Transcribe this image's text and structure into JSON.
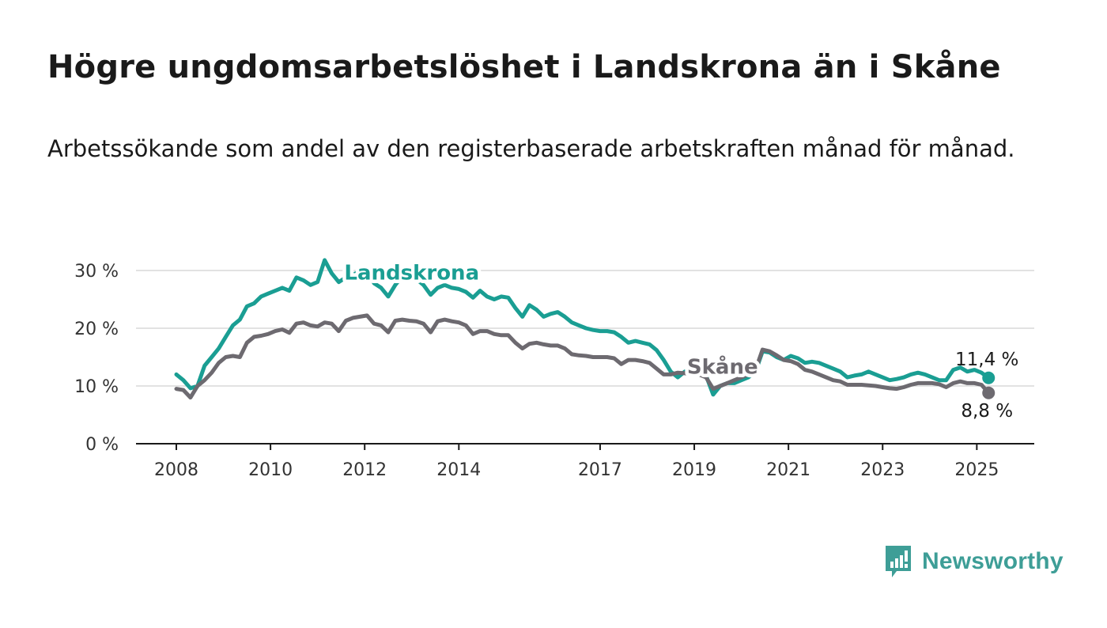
{
  "title": "Högre ungdomsarbetslöshet i Landskrona än i Skåne",
  "subtitle": "Arbetssökande som andel av den registerbaserade arbetskraften månad för månad.",
  "brand": {
    "name": "Newsworthy",
    "color": "#3e9e97"
  },
  "chart_data": {
    "type": "line",
    "ylim": [
      0,
      30
    ],
    "xlim": [
      2008,
      2025.45
    ],
    "y_ticks": [
      0,
      10,
      20,
      30
    ],
    "y_tick_labels": [
      "0 %",
      "10 %",
      "20 %",
      "30 %"
    ],
    "x_ticks": [
      2008,
      2010,
      2012,
      2014,
      2017,
      2019,
      2021,
      2023,
      2025
    ],
    "x_tick_labels": [
      "2008",
      "2010",
      "2012",
      "2014",
      "2017",
      "2019",
      "2021",
      "2023",
      "2025"
    ],
    "grid": true,
    "series": [
      {
        "name": "Landskrona",
        "color": "#1a9e93",
        "end_label": "11,4 %",
        "end_value": 11.4,
        "x": [
          2008.0,
          2008.15,
          2008.3,
          2008.45,
          2008.6,
          2008.75,
          2008.9,
          2009.05,
          2009.2,
          2009.35,
          2009.5,
          2009.65,
          2009.8,
          2009.95,
          2010.1,
          2010.25,
          2010.4,
          2010.55,
          2010.7,
          2010.85,
          2011.0,
          2011.15,
          2011.3,
          2011.45,
          2011.6,
          2011.75,
          2011.9,
          2012.05,
          2012.2,
          2012.35,
          2012.5,
          2012.65,
          2012.8,
          2012.95,
          2013.1,
          2013.25,
          2013.4,
          2013.55,
          2013.7,
          2013.85,
          2014.0,
          2014.15,
          2014.3,
          2014.45,
          2014.6,
          2014.75,
          2014.9,
          2015.05,
          2015.2,
          2015.35,
          2015.5,
          2015.65,
          2015.8,
          2015.95,
          2016.1,
          2016.25,
          2016.4,
          2016.55,
          2016.7,
          2016.85,
          2017.0,
          2017.15,
          2017.3,
          2017.45,
          2017.6,
          2017.75,
          2017.9,
          2018.05,
          2018.2,
          2018.35,
          2018.5,
          2018.65,
          2018.8,
          2018.95,
          2019.1,
          2019.25,
          2019.4,
          2019.55,
          2019.7,
          2019.85,
          2020.0,
          2020.15,
          2020.3,
          2020.45,
          2020.6,
          2020.75,
          2020.9,
          2021.05,
          2021.2,
          2021.35,
          2021.5,
          2021.65,
          2021.8,
          2021.95,
          2022.1,
          2022.25,
          2022.4,
          2022.55,
          2022.7,
          2022.85,
          2023.0,
          2023.15,
          2023.3,
          2023.45,
          2023.6,
          2023.75,
          2023.9,
          2024.05,
          2024.2,
          2024.35,
          2024.5,
          2024.65,
          2024.8,
          2024.95,
          2025.1,
          2025.25
        ],
        "y": [
          12.0,
          11.0,
          9.6,
          10.0,
          13.5,
          15.0,
          16.5,
          18.5,
          20.5,
          21.5,
          23.8,
          24.3,
          25.5,
          26.0,
          26.5,
          27.0,
          26.5,
          28.8,
          28.3,
          27.5,
          28.0,
          31.8,
          29.5,
          28.0,
          28.8,
          29.3,
          29.8,
          30.0,
          27.8,
          27.0,
          25.5,
          27.5,
          29.0,
          29.3,
          28.5,
          27.5,
          25.8,
          27.0,
          27.5,
          27.0,
          26.8,
          26.3,
          25.3,
          26.5,
          25.5,
          25.0,
          25.5,
          25.3,
          23.5,
          22.0,
          24.0,
          23.2,
          22.0,
          22.5,
          22.8,
          22.0,
          21.0,
          20.5,
          20.0,
          19.7,
          19.5,
          19.5,
          19.3,
          18.5,
          17.5,
          17.8,
          17.5,
          17.2,
          16.2,
          14.5,
          12.5,
          11.5,
          12.5,
          12.0,
          12.0,
          11.8,
          8.5,
          10.0,
          10.5,
          10.5,
          11.0,
          11.5,
          12.5,
          16.0,
          15.8,
          15.0,
          14.5,
          15.2,
          14.8,
          14.0,
          14.2,
          14.0,
          13.5,
          13.0,
          12.5,
          11.5,
          11.8,
          12.0,
          12.5,
          12.0,
          11.5,
          11.0,
          11.2,
          11.5,
          12.0,
          12.3,
          12.0,
          11.5,
          11.0,
          11.0,
          12.8,
          13.2,
          12.5,
          12.8,
          12.3,
          11.4
        ]
      },
      {
        "name": "Skåne",
        "color": "#6d6a70",
        "end_label": "8,8 %",
        "end_value": 8.8,
        "x": [
          2008.0,
          2008.15,
          2008.3,
          2008.45,
          2008.6,
          2008.75,
          2008.9,
          2009.05,
          2009.2,
          2009.35,
          2009.5,
          2009.65,
          2009.8,
          2009.95,
          2010.1,
          2010.25,
          2010.4,
          2010.55,
          2010.7,
          2010.85,
          2011.0,
          2011.15,
          2011.3,
          2011.45,
          2011.6,
          2011.75,
          2011.9,
          2012.05,
          2012.2,
          2012.35,
          2012.5,
          2012.65,
          2012.8,
          2012.95,
          2013.1,
          2013.25,
          2013.4,
          2013.55,
          2013.7,
          2013.85,
          2014.0,
          2014.15,
          2014.3,
          2014.45,
          2014.6,
          2014.75,
          2014.9,
          2015.05,
          2015.2,
          2015.35,
          2015.5,
          2015.65,
          2015.8,
          2015.95,
          2016.1,
          2016.25,
          2016.4,
          2016.55,
          2016.7,
          2016.85,
          2017.0,
          2017.15,
          2017.3,
          2017.45,
          2017.6,
          2017.75,
          2017.9,
          2018.05,
          2018.2,
          2018.35,
          2018.5,
          2018.65,
          2018.8,
          2018.95,
          2019.1,
          2019.25,
          2019.4,
          2019.55,
          2019.7,
          2019.85,
          2020.0,
          2020.15,
          2020.3,
          2020.45,
          2020.6,
          2020.75,
          2020.9,
          2021.05,
          2021.2,
          2021.35,
          2021.5,
          2021.65,
          2021.8,
          2021.95,
          2022.1,
          2022.25,
          2022.4,
          2022.55,
          2022.7,
          2022.85,
          2023.0,
          2023.15,
          2023.3,
          2023.45,
          2023.6,
          2023.75,
          2023.9,
          2024.05,
          2024.2,
          2024.35,
          2024.5,
          2024.65,
          2024.8,
          2024.95,
          2025.1,
          2025.25
        ],
        "y": [
          9.5,
          9.3,
          8.0,
          10.0,
          11.0,
          12.3,
          14.0,
          15.0,
          15.2,
          15.0,
          17.5,
          18.5,
          18.7,
          19.0,
          19.5,
          19.8,
          19.2,
          20.8,
          21.0,
          20.5,
          20.3,
          21.0,
          20.8,
          19.5,
          21.3,
          21.8,
          22.0,
          22.2,
          20.8,
          20.5,
          19.3,
          21.3,
          21.5,
          21.3,
          21.2,
          20.8,
          19.3,
          21.2,
          21.5,
          21.2,
          21.0,
          20.5,
          19.0,
          19.5,
          19.5,
          19.0,
          18.8,
          18.8,
          17.5,
          16.5,
          17.3,
          17.5,
          17.2,
          17.0,
          17.0,
          16.5,
          15.5,
          15.3,
          15.2,
          15.0,
          15.0,
          15.0,
          14.8,
          13.8,
          14.5,
          14.5,
          14.3,
          14.0,
          13.0,
          12.0,
          12.0,
          12.3,
          12.2,
          12.0,
          12.0,
          11.5,
          9.5,
          10.0,
          10.5,
          11.0,
          11.5,
          12.0,
          12.8,
          16.3,
          16.0,
          15.3,
          14.5,
          14.3,
          13.8,
          12.8,
          12.5,
          12.0,
          11.5,
          11.0,
          10.8,
          10.2,
          10.2,
          10.2,
          10.1,
          10.0,
          9.8,
          9.6,
          9.5,
          9.8,
          10.2,
          10.5,
          10.5,
          10.5,
          10.3,
          9.8,
          10.5,
          10.8,
          10.5,
          10.5,
          10.2,
          8.8
        ]
      }
    ],
    "annotations": [
      {
        "text": "Landskrona",
        "series": "Landskrona",
        "x": 2013.0,
        "y": 28.4,
        "color": "#1a9e93"
      },
      {
        "text": "Skåne",
        "series": "Skåne",
        "x": 2019.6,
        "y": 12.1,
        "color": "#6d6a70"
      }
    ]
  }
}
